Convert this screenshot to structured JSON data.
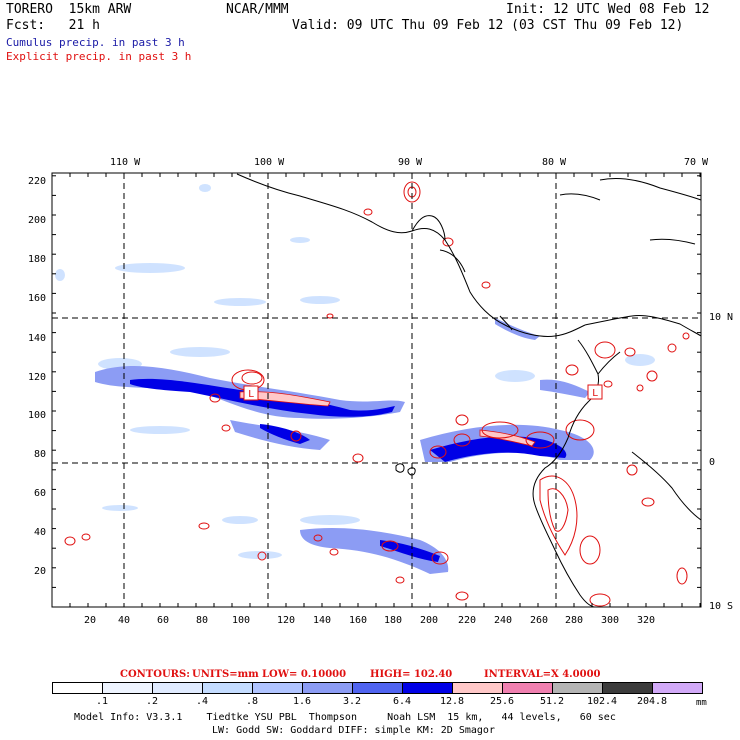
{
  "header": {
    "model": "TORERO  15km ARW",
    "org": "NCAR/MMM",
    "init": "Init: 12 UTC Wed 08 Feb 12",
    "fcst": "Fcst:   21 h",
    "valid": "Valid: 09 UTC Thu 09 Feb 12 (03 CST Thu 09 Feb 12)",
    "cumulus": "Cumulus precip. in past 3 h",
    "explicit": "Explicit precip. in past 3 h"
  },
  "map": {
    "lon_labels": [
      "110 W",
      "100 W",
      "90 W",
      "80 W",
      "70 W"
    ],
    "lat_labels": [
      "10 N",
      "0",
      "10 S"
    ],
    "y_ticks": [
      "220",
      "200",
      "180",
      "160",
      "140",
      "120",
      "100",
      "80",
      "60",
      "40",
      "20"
    ],
    "x_ticks": [
      "20",
      "40",
      "60",
      "80",
      "100",
      "120",
      "140",
      "160",
      "180",
      "200",
      "220",
      "240",
      "260",
      "280",
      "300",
      "320"
    ],
    "low_markers": [
      "L",
      "L"
    ]
  },
  "contours": {
    "title": "CONTOURS:",
    "units": "UNITS=mm",
    "low": "LOW= 0.10000",
    "high": "HIGH= 102.40",
    "interval": "INTERVAL=X 4.0000"
  },
  "colorbar": {
    "labels": [
      ".1",
      ".2",
      ".4",
      ".8",
      "1.6",
      "3.2",
      "6.4",
      "12.8",
      "25.6",
      "51.2",
      "102.4",
      "204.8"
    ],
    "unit": "mm",
    "colors": [
      "#ffffff",
      "#eef4ff",
      "#e0ebff",
      "#c4dcff",
      "#b0c4ff",
      "#8c9cf4",
      "#5064f0",
      "#0000e6",
      "#ffc8c8",
      "#f080b0",
      "#b4b4b4",
      "#3c3c3c",
      "#d2aaf8"
    ]
  },
  "footer": {
    "line1": "Model Info: V3.3.1    Tiedtke YSU PBL  Thompson     Noah LSM  15 km,   44 levels,   60 sec",
    "line2": "LW: Godd SW: Goddard DIFF: simple KM: 2D Smagor"
  }
}
